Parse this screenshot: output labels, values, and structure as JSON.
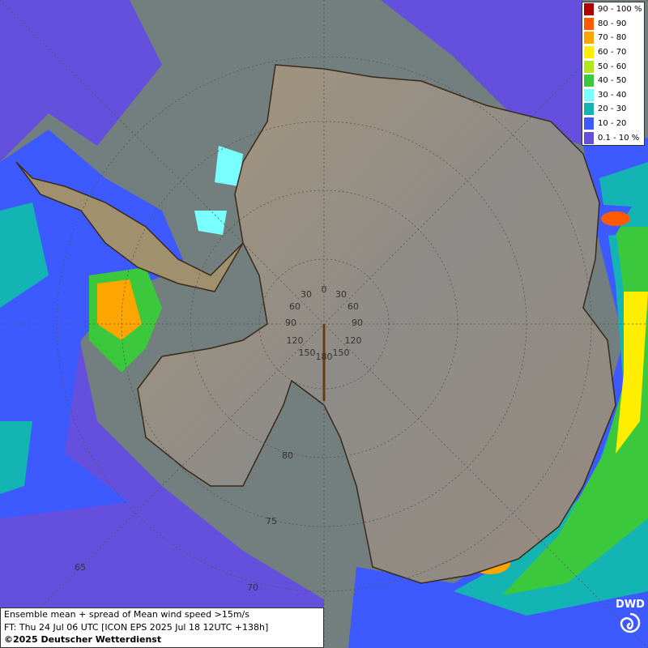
{
  "legend": [
    {
      "label": "90 - 100 %",
      "color": "#b00000"
    },
    {
      "label": "80 - 90",
      "color": "#ff5a00"
    },
    {
      "label": "70 - 80",
      "color": "#ffa500"
    },
    {
      "label": "60 - 70",
      "color": "#ffee00"
    },
    {
      "label": "50 - 60",
      "color": "#b4e61e"
    },
    {
      "label": "40 - 50",
      "color": "#3cc83c"
    },
    {
      "label": "30 - 40",
      "color": "#78ffff"
    },
    {
      "label": "20 - 30",
      "color": "#14b4b4"
    },
    {
      "label": "10 - 20",
      "color": "#3c5aff"
    },
    {
      "label": "0.1 - 10 %",
      "color": "#6450dc"
    }
  ],
  "caption": {
    "line1": "Ensemble mean + spread of Mean wind speed >15m/s",
    "line2": "FT: Thu 24 Jul 06 UTC [ICON EPS 2025 Jul 18 12UTC +138h]",
    "line3": "©2025 Deutscher Wetterdienst"
  },
  "logo": "DWD",
  "graticule": {
    "longitude_labels": [
      "0",
      "30",
      "60",
      "90",
      "120",
      "150",
      "180"
    ],
    "latitude_labels": [
      "80",
      "75",
      "70",
      "65"
    ]
  }
}
